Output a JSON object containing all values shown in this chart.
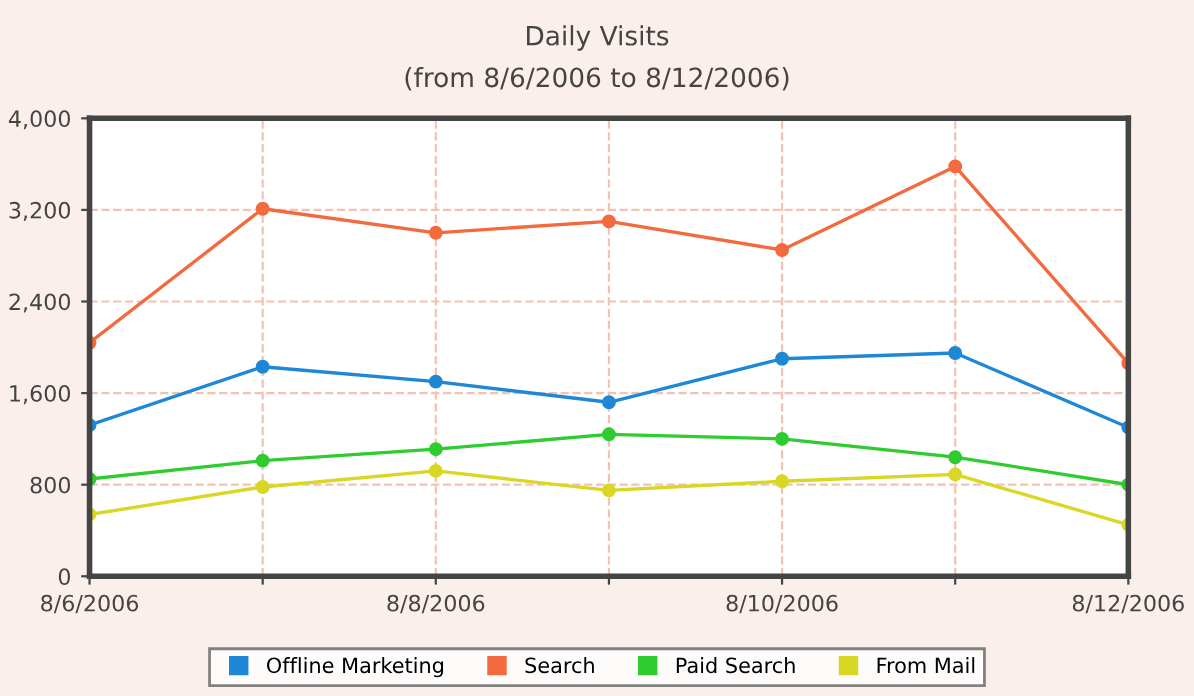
{
  "chart_data": {
    "type": "line",
    "title": "Daily Visits",
    "subtitle": "(from 8/6/2006 to 8/12/2006)",
    "categories": [
      "8/6/2006",
      null,
      "8/8/2006",
      null,
      "8/10/2006",
      null,
      "8/12/2006"
    ],
    "series": [
      {
        "name": "Offline Marketing",
        "color": "#1e88d6",
        "values": [
          1320,
          1830,
          1700,
          1520,
          1900,
          1950,
          1300
        ]
      },
      {
        "name": "Search",
        "color": "#f26a3e",
        "values": [
          2040,
          3210,
          3000,
          3100,
          2850,
          3580,
          1860
        ]
      },
      {
        "name": "Paid Search",
        "color": "#2ecc2e",
        "values": [
          850,
          1010,
          1110,
          1240,
          1200,
          1040,
          800
        ]
      },
      {
        "name": "From Mail",
        "color": "#d8d824",
        "values": [
          540,
          780,
          920,
          750,
          830,
          890,
          450
        ]
      }
    ],
    "ylim": [
      0,
      4000
    ],
    "yticks": [
      {
        "value": 0,
        "label": "0"
      },
      {
        "value": 800,
        "label": "800"
      },
      {
        "value": 1600,
        "label": "1,600"
      },
      {
        "value": 2400,
        "label": "2,400"
      },
      {
        "value": 3200,
        "label": "3,200"
      },
      {
        "value": 4000,
        "label": "4,000"
      }
    ],
    "grid": true,
    "legend": "bottom",
    "marker": "circle",
    "line_style": "solid"
  }
}
